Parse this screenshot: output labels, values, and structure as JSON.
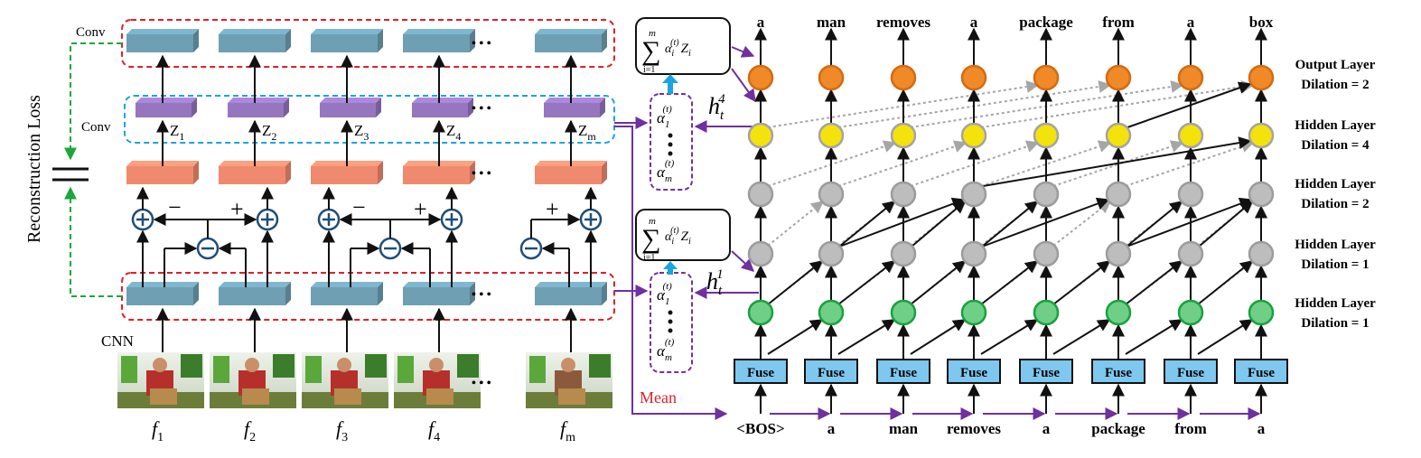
{
  "left": {
    "conv_top_label": "Conv",
    "conv_mid_label": "Conv",
    "cnn_label": "CNN",
    "reconstruction_label": "Reconstruction Loss",
    "dots": "• • •",
    "z_labels": [
      "Z1",
      "Z2",
      "Z3",
      "Z4",
      "Zm"
    ],
    "z_base": [
      "Z",
      "Z",
      "Z",
      "Z",
      "Z"
    ],
    "z_sub": [
      "1",
      "2",
      "3",
      "4",
      "m"
    ],
    "minus": "−",
    "plus": "+",
    "frame_base": [
      "f",
      "f",
      "f",
      "f",
      "f"
    ],
    "frame_sub": [
      "1",
      "2",
      "3",
      "4",
      "m"
    ]
  },
  "middle": {
    "mean_label": "Mean",
    "attention_top": {
      "h_base": "h",
      "h_sub": "t",
      "h_sup": "4"
    },
    "attention_bottom": {
      "h_base": "h",
      "h_sub": "t",
      "h_sup": "1"
    },
    "sum_formula": {
      "upper": "m",
      "lower": "i=1",
      "body": "α",
      "sub": "i",
      "sup": "(t)",
      "z": "Z",
      "zsub": "i"
    },
    "alpha_first": {
      "base": "α",
      "sub": "1",
      "sup": "(t)"
    },
    "alpha_last": {
      "base": "α",
      "sub": "m",
      "sup": "(t)"
    }
  },
  "right": {
    "output_words": [
      "a",
      "man",
      "removes",
      "a",
      "package",
      "from",
      "a",
      "box"
    ],
    "input_words": [
      "<BOS>",
      "a",
      "man",
      "removes",
      "a",
      "package",
      "from",
      "a"
    ],
    "fuse_label": "Fuse",
    "layer_labels": [
      {
        "title": "Output Layer",
        "dilation": "Dilation = 2"
      },
      {
        "title": "Hidden Layer",
        "dilation": "Dilation = 4"
      },
      {
        "title": "Hidden Layer",
        "dilation": "Dilation = 2"
      },
      {
        "title": "Hidden Layer",
        "dilation": "Dilation = 1"
      },
      {
        "title": "Hidden Layer",
        "dilation": "Dilation = 1"
      }
    ]
  },
  "colors": {
    "teal_box": "#6e9fb3",
    "purple_box": "#9676bf",
    "salmon_box": "#f08a6e",
    "red_dash": "#e0202a",
    "blue_dash": "#1aa3e0",
    "green_dash": "#19a839",
    "purple_line": "#7030a0",
    "navy": "#1f4e79",
    "orange_node": "#f08a28",
    "yellow_node": "#f4e20c",
    "gray_node": "#bdbdbd",
    "green_node": "#6fcf87",
    "fuse_fill": "#7ec8ef",
    "cyan_arrow": "#1ba4e0"
  }
}
